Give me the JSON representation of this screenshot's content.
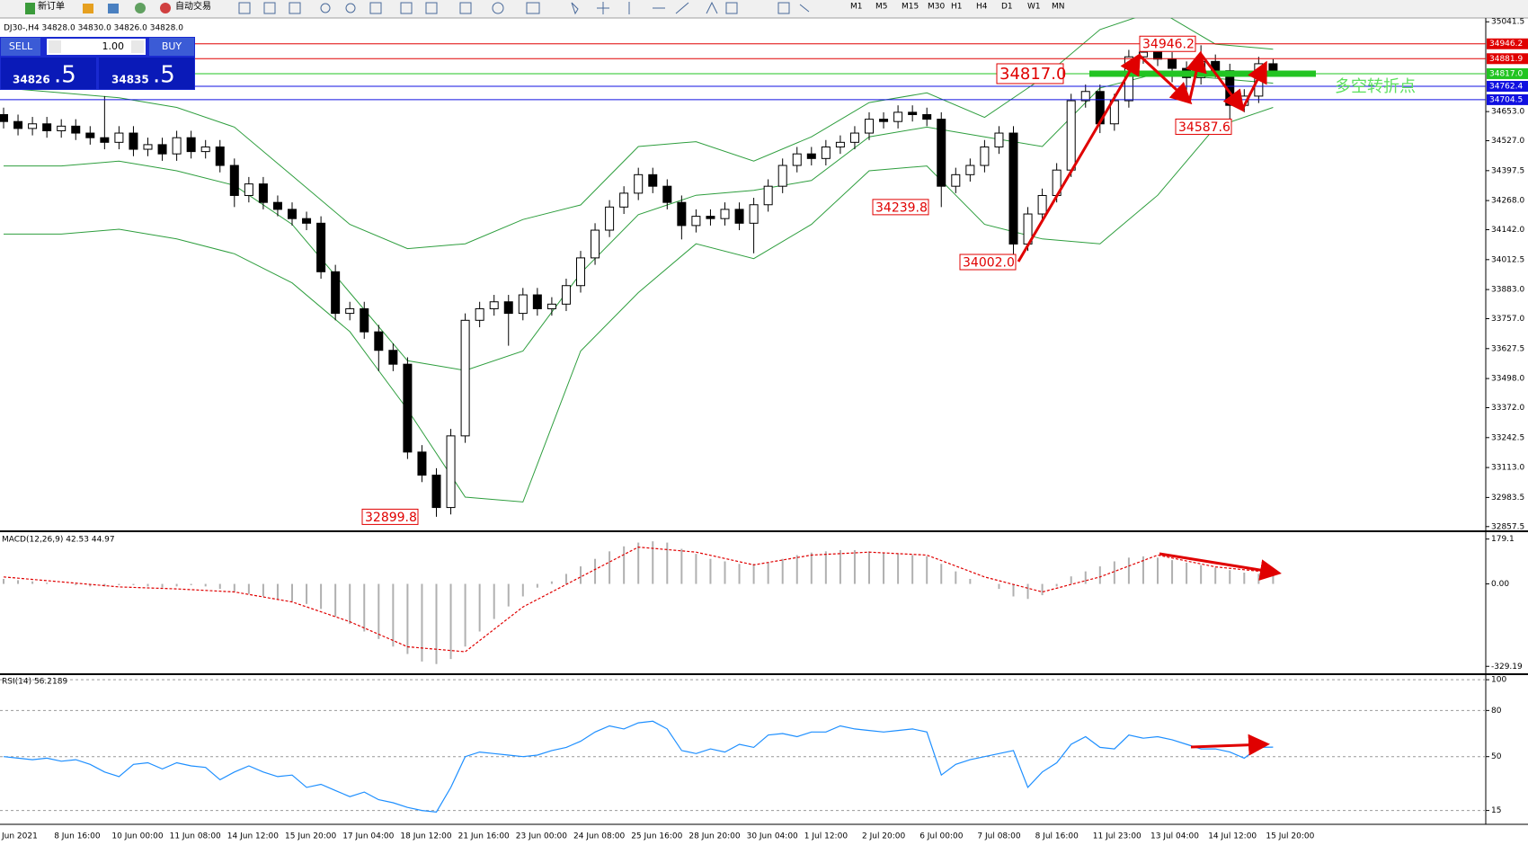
{
  "toolbar": {
    "new_order": "新订单",
    "auto_trading": "自动交易",
    "timeframes": [
      "M1",
      "M5",
      "M15",
      "M30",
      "H1",
      "H4",
      "D1",
      "W1",
      "MN"
    ]
  },
  "trade_panel": {
    "sell": "SELL",
    "buy": "BUY",
    "lot": "1.00",
    "sell_price_main": "34826",
    "sell_price_frac": ".5",
    "buy_price_main": "34835",
    "buy_price_frac": ".5"
  },
  "chart_data": [
    {
      "type": "candlestick",
      "title": "DJ30-,H4 34828.0 34830.0 34826.0 34828.0",
      "categories": [
        "Jun 2021",
        null,
        null,
        null,
        "8 Jun 16:00",
        null,
        null,
        null,
        "10 Jun 00:00",
        null,
        null,
        null,
        "11 Jun 08:00",
        null,
        null,
        null,
        "14 Jun 12:00",
        null,
        null,
        null,
        "15 Jun 20:00",
        null,
        null,
        null,
        "17 Jun 04:00",
        null,
        null,
        null,
        "18 Jun 12:00",
        null,
        null,
        null,
        "21 Jun 16:00",
        null,
        null,
        null,
        "23 Jun 00:00",
        null,
        null,
        null,
        "24 Jun 08:00",
        null,
        null,
        null,
        "25 Jun 16:00",
        null,
        null,
        null,
        "28 Jun 20:00",
        null,
        null,
        null,
        "30 Jun 04:00",
        null,
        null,
        null,
        "1 Jul 12:00",
        null,
        null,
        null,
        "2 Jul 20:00",
        null,
        null,
        null,
        "6 Jul 00:00",
        null,
        null,
        null,
        "7 Jul 08:00",
        null,
        null,
        null,
        "8 Jul 16:00",
        null,
        null,
        null,
        "11 Jul 23:00",
        null,
        null,
        null,
        "13 Jul 04:00",
        null,
        null,
        null,
        "14 Jul 12:00",
        null,
        null,
        null,
        "15 Jul 20:00"
      ],
      "open": [
        34640,
        34610,
        34580,
        34600,
        34570,
        34590,
        34560,
        34540,
        34520,
        34560,
        34490,
        34510,
        34470,
        34540,
        34480,
        34500,
        34420,
        34290,
        34340,
        34260,
        34230,
        34190,
        34170,
        33960,
        33780,
        33800,
        33700,
        33620,
        33560,
        33180,
        33080,
        32940,
        33250,
        33750,
        33800,
        33830,
        33780,
        33860,
        33800,
        33820,
        33900,
        34020,
        34140,
        34240,
        34300,
        34380,
        34330,
        34260,
        34160,
        34200,
        34190,
        34230,
        34170,
        34250,
        34330,
        34420,
        34470,
        34450,
        34500,
        34520,
        34560,
        34620,
        34610,
        34650,
        34640,
        34620,
        34330,
        34380,
        34420,
        34500,
        34560,
        34080,
        34210,
        34290,
        34400,
        34700,
        34740,
        34600,
        34700,
        34890,
        34910,
        34880,
        34840,
        34800,
        34870,
        34830,
        34680,
        34720,
        34860
      ],
      "high": [
        34670,
        34640,
        34630,
        34630,
        34620,
        34620,
        34590,
        34720,
        34590,
        34590,
        34540,
        34540,
        34570,
        34570,
        34530,
        34530,
        34450,
        34370,
        34370,
        34290,
        34260,
        34220,
        34200,
        33990,
        33830,
        33830,
        33730,
        33650,
        33590,
        33210,
        33110,
        33280,
        33780,
        33830,
        33860,
        33860,
        33890,
        33890,
        33850,
        33930,
        34050,
        34170,
        34270,
        34330,
        34410,
        34410,
        34360,
        34290,
        34230,
        34230,
        34260,
        34260,
        34280,
        34360,
        34450,
        34500,
        34500,
        34530,
        34550,
        34590,
        34650,
        34650,
        34680,
        34680,
        34670,
        34650,
        34410,
        34450,
        34530,
        34590,
        34590,
        34240,
        34320,
        34430,
        34730,
        34770,
        34770,
        34730,
        34920,
        34946.2,
        34940,
        34910,
        34870,
        34940,
        34900,
        34860,
        34750,
        34890,
        34880
      ],
      "low": [
        34580,
        34550,
        34550,
        34540,
        34540,
        34530,
        34510,
        34490,
        34490,
        34460,
        34460,
        34440,
        34440,
        34450,
        34450,
        34390,
        34240,
        34260,
        34230,
        34200,
        34160,
        34140,
        33930,
        33750,
        33750,
        33670,
        33530,
        33530,
        33150,
        33050,
        32899.8,
        32910,
        33220,
        33720,
        33770,
        33640,
        33750,
        33770,
        33770,
        33790,
        33870,
        33990,
        34110,
        34210,
        34270,
        34300,
        34230,
        34100,
        34130,
        34160,
        34160,
        34140,
        34040,
        34220,
        34300,
        34390,
        34420,
        34420,
        34470,
        34490,
        34530,
        34580,
        34580,
        34610,
        34590,
        34239.8,
        34300,
        34350,
        34390,
        34470,
        34002.0,
        34050,
        34180,
        34260,
        34370,
        34670,
        34560,
        34570,
        34670,
        34860,
        34850,
        34780,
        34740,
        34770,
        34800,
        34587.6,
        34650,
        34690,
        34810
      ],
      "close": [
        34610,
        34580,
        34600,
        34570,
        34590,
        34560,
        34540,
        34520,
        34560,
        34490,
        34510,
        34470,
        34540,
        34480,
        34500,
        34420,
        34290,
        34340,
        34260,
        34230,
        34190,
        34170,
        33960,
        33780,
        33800,
        33700,
        33620,
        33560,
        33180,
        33080,
        32940,
        33250,
        33750,
        33800,
        33830,
        33780,
        33860,
        33800,
        33820,
        33900,
        34020,
        34140,
        34240,
        34300,
        34380,
        34330,
        34260,
        34160,
        34200,
        34190,
        34230,
        34170,
        34250,
        34330,
        34420,
        34470,
        34450,
        34500,
        34520,
        34560,
        34620,
        34610,
        34650,
        34640,
        34620,
        34330,
        34380,
        34420,
        34500,
        34560,
        34080,
        34210,
        34290,
        34400,
        34700,
        34740,
        34600,
        34700,
        34890,
        34910,
        34880,
        34840,
        34800,
        34870,
        34830,
        34680,
        34720,
        34860,
        34828
      ],
      "color_up": "#ffffff",
      "color_down": "#000000",
      "bands": {
        "color": "#2e9e3e",
        "x": [
          0,
          4,
          8,
          12,
          16,
          20,
          24,
          28,
          32,
          36,
          40,
          44,
          48,
          52,
          56,
          60,
          64,
          68,
          72,
          76,
          80,
          84,
          88
        ],
        "upper": [
          34755,
          34734,
          34713,
          34671,
          34586,
          34376,
          34165,
          34060,
          34081,
          34186,
          34249,
          34502,
          34523,
          34439,
          34544,
          34692,
          34734,
          34628,
          34797,
          35008,
          35092,
          34945,
          34923
        ],
        "middle": [
          34418,
          34418,
          34439,
          34397,
          34334,
          34165,
          33870,
          33575,
          33533,
          33617,
          33954,
          34207,
          34291,
          34312,
          34355,
          34544,
          34586,
          34544,
          34502,
          34755,
          34818,
          34797,
          34776
        ],
        "lower": [
          34123,
          34123,
          34144,
          34102,
          34038,
          33912,
          33701,
          33364,
          32985,
          32964,
          33617,
          33870,
          34081,
          34017,
          34165,
          34397,
          34418,
          34165,
          34102,
          34081,
          34291,
          34586,
          34671
        ]
      },
      "ylim": [
        32845,
        35058
      ],
      "yticks": [
        35041.5,
        {
          "value": 34653,
          "label": "34653.0"
        },
        {
          "value": 34527,
          "label": "34527.0"
        },
        34397.5,
        {
          "value": 34268,
          "label": "34268.0"
        },
        {
          "value": 34142,
          "label": "34142.0"
        },
        34012.5,
        {
          "value": 33883,
          "label": "33883.0"
        },
        {
          "value": 33757,
          "label": "33757.0"
        },
        33627.5,
        {
          "value": 33498,
          "label": "33498.0"
        },
        {
          "value": 33372,
          "label": "33372.0"
        },
        33242.5,
        {
          "value": 33113,
          "label": "33113.0"
        },
        32983.5,
        32857.5
      ],
      "price_lines": [
        {
          "value": 34946.2,
          "color": "#e00000"
        },
        {
          "value": 34881.9,
          "color": "#e00000"
        },
        {
          "value": {
            "value": 34817,
            "label": "34817.0"
          },
          "color": "#22c422"
        },
        {
          "value": 34762.4,
          "color": "#1010e0"
        },
        {
          "value": 34704.5,
          "color": "#1010e0"
        }
      ],
      "annotations": [
        {
          "value": 34946.2,
          "label": "34946.2"
        },
        {
          "value": 34817,
          "label": "34817.0"
        },
        {
          "value": 34587.6,
          "label": "34587.6"
        },
        {
          "value": 34239.8,
          "label": "34239.8"
        },
        {
          "value": 34002,
          "label": "34002.0"
        },
        {
          "value": 32899.8,
          "label": "32899.8"
        }
      ],
      "note": "多空转折点"
    },
    {
      "type": "macd",
      "title": "MACD(12,26,9) 42.53 44.97",
      "histogram": [
        20,
        15,
        10,
        5,
        0,
        -5,
        -10,
        -10,
        -5,
        -5,
        -10,
        -15,
        -10,
        -5,
        -10,
        -20,
        -30,
        -40,
        -50,
        -60,
        -70,
        -80,
        -100,
        -130,
        -160,
        -190,
        -220,
        -250,
        -280,
        -310,
        -320,
        -300,
        -250,
        -190,
        -140,
        -90,
        -50,
        -15,
        10,
        40,
        70,
        100,
        130,
        150,
        165,
        170,
        165,
        140,
        120,
        100,
        90,
        80,
        80,
        85,
        100,
        115,
        125,
        130,
        135,
        135,
        130,
        125,
        120,
        115,
        110,
        80,
        50,
        20,
        0,
        -20,
        -50,
        -60,
        -45,
        -10,
        30,
        50,
        70,
        90,
        105,
        110,
        105,
        95,
        85,
        75,
        65,
        55,
        45,
        40,
        42.53
      ],
      "hist_color": "#b0b0b0",
      "signal": {
        "color": "#e00000",
        "x": [
          0,
          4,
          8,
          12,
          16,
          20,
          24,
          28,
          32,
          36,
          40,
          44,
          48,
          52,
          56,
          60,
          64,
          68,
          72,
          76,
          80,
          84,
          88
        ],
        "values": [
          28,
          8,
          -12,
          -20,
          -32,
          -72,
          -151,
          -251,
          -271,
          -92,
          28,
          147,
          127,
          76,
          115,
          127,
          115,
          28,
          -32,
          28,
          115,
          68,
          44.97
        ]
      },
      "ylim": [
        -357,
        203
      ],
      "yticks": [
        179.1,
        {
          "value": 0,
          "label": "0.00"
        },
        -329.19
      ]
    },
    {
      "type": "line",
      "title": "RSI(14) 56.2189",
      "values": [
        50,
        49,
        48,
        49,
        47,
        48,
        45,
        40,
        37,
        45,
        46,
        42,
        46,
        44,
        43,
        35,
        40,
        44,
        40,
        37,
        38,
        30,
        32,
        28,
        24,
        27,
        22,
        20,
        17,
        15,
        14,
        30,
        50,
        53,
        52,
        51,
        50,
        51,
        54,
        56,
        60,
        66,
        70,
        68,
        72,
        73,
        68,
        54,
        52,
        55,
        53,
        58,
        56,
        64,
        65,
        63,
        66,
        66,
        70,
        68,
        67,
        66,
        67,
        68,
        66,
        38,
        45,
        48,
        50,
        52,
        54,
        30,
        40,
        46,
        58,
        63,
        56,
        55,
        64,
        62,
        63,
        61,
        58,
        55,
        55,
        53,
        49,
        56,
        56.2189
      ],
      "color": "#1e8fff",
      "ylim": [
        6,
        103
      ],
      "yticks": [
        100,
        80,
        50,
        15
      ],
      "grid": true
    }
  ]
}
